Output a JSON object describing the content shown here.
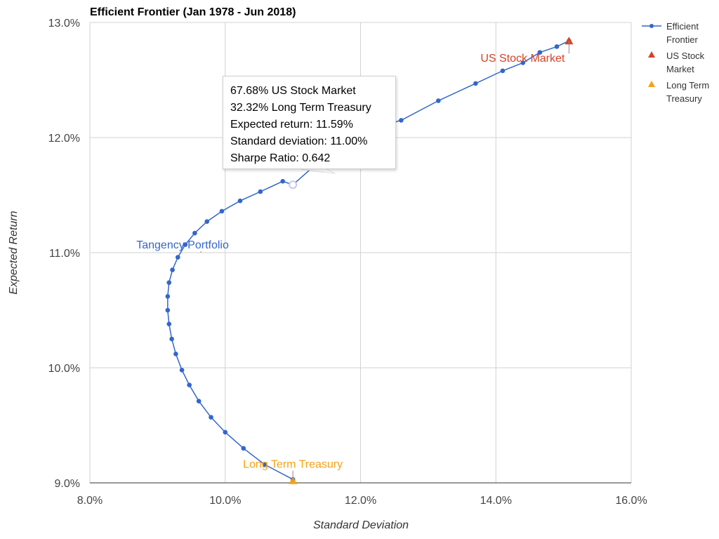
{
  "chart_data": {
    "type": "scatter",
    "title": "Efficient Frontier (Jan 1978 - Jun 2018)",
    "xlabel": "Standard Deviation",
    "ylabel": "Expected Return",
    "xlim": [
      8.0,
      16.0
    ],
    "ylim": [
      9.0,
      13.0
    ],
    "x_ticks": [
      "8.0%",
      "10.0%",
      "12.0%",
      "14.0%",
      "16.0%"
    ],
    "y_ticks": [
      "9.0%",
      "10.0%",
      "11.0%",
      "12.0%",
      "13.0%"
    ],
    "grid": true,
    "legend_position": "right",
    "series": [
      {
        "name": "Efficient Frontier",
        "color": "#3366cc",
        "marker": "circle",
        "line": true,
        "x": [
          11.0,
          10.58,
          10.27,
          10.0,
          9.79,
          9.61,
          9.47,
          9.36,
          9.27,
          9.21,
          9.17,
          9.15,
          9.15,
          9.17,
          9.22,
          9.3,
          9.41,
          9.55,
          9.73,
          9.95,
          10.22,
          10.52,
          10.85,
          11.0,
          11.58,
          12.0,
          12.6,
          13.15,
          13.7,
          14.1,
          14.4,
          14.65,
          14.9,
          15.08
        ],
        "y": [
          9.03,
          9.16,
          9.3,
          9.44,
          9.57,
          9.71,
          9.85,
          9.98,
          10.12,
          10.25,
          10.38,
          10.5,
          10.62,
          10.74,
          10.85,
          10.96,
          11.07,
          11.17,
          11.27,
          11.36,
          11.45,
          11.53,
          11.62,
          11.59,
          11.89,
          12.05,
          12.15,
          12.32,
          12.47,
          12.58,
          12.65,
          12.74,
          12.79,
          12.84
        ]
      },
      {
        "name": "US Stock Market",
        "color": "#d64227",
        "marker": "triangle",
        "x": [
          15.08
        ],
        "y": [
          12.84
        ]
      },
      {
        "name": "Long Term Treasury",
        "color": "#f5a214",
        "marker": "triangle",
        "x": [
          11.0
        ],
        "y": [
          9.02
        ]
      }
    ],
    "annotations": [
      {
        "text": "US Stock Market",
        "x": 15.08,
        "y": 12.84,
        "color": "#d64227"
      },
      {
        "text": "Tangency Portfolio",
        "x": 9.64,
        "y": 11.0,
        "color": "#3366cc"
      },
      {
        "text": "Long Term Treasury",
        "x": 11.0,
        "y": 9.02,
        "color": "#f5a214"
      }
    ],
    "tooltip": {
      "lines": [
        "67.68% US Stock Market",
        "32.32% Long Term Treasury",
        "Expected return: 11.59%",
        "Standard deviation: 11.00%",
        "Sharpe Ratio: 0.642"
      ],
      "x": 11.0,
      "y": 11.59
    }
  },
  "legend": {
    "frontier_line1": "Efficient",
    "frontier_line2": "Frontier",
    "stock_line1": "US Stock",
    "stock_line2": "Market",
    "treasury_line1": "Long Term",
    "treasury_line2": "Treasury"
  }
}
